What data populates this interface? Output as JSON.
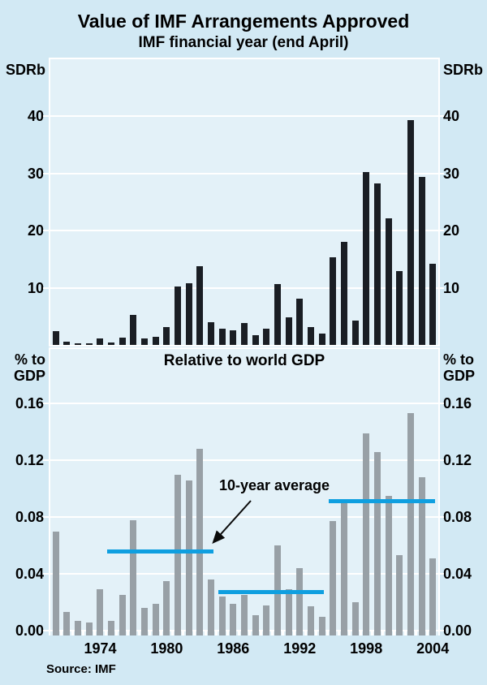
{
  "page": {
    "title": "Value of IMF Arrangements Approved",
    "subtitle": "IMF financial year (end April)",
    "top_axis_label_left": "SDRb",
    "top_axis_label_right": "SDRb",
    "bottom_axis_label_left": "% to\nGDP",
    "bottom_axis_label_right": "% to\nGDP",
    "bottom_title": "Relative to world GDP",
    "annotation_label": "10-year average",
    "source": "Source: IMF"
  },
  "colors": {
    "page_bg": "#d2e9f4",
    "panel_bg": "#e3f1f8",
    "grid": "#ffffff",
    "bar_dark": "#1a1e24",
    "bar_gray": "#98a0a6",
    "avg_line": "#0f9fe0",
    "text": "#000000"
  },
  "chart_data": [
    {
      "type": "bar",
      "title": "Value of IMF Arrangements Approved",
      "subtitle": "IMF financial year (end April)",
      "ylabel": "SDRb",
      "ylim": [
        0,
        50
      ],
      "yticks": [
        10,
        20,
        30,
        40
      ],
      "grid": true,
      "categories": [
        1970,
        1971,
        1972,
        1973,
        1974,
        1975,
        1976,
        1977,
        1978,
        1979,
        1980,
        1981,
        1982,
        1983,
        1984,
        1985,
        1986,
        1987,
        1988,
        1989,
        1990,
        1991,
        1992,
        1993,
        1994,
        1995,
        1996,
        1997,
        1998,
        1999,
        2000,
        2001,
        2002,
        2003,
        2004
      ],
      "values": [
        2.4,
        0.6,
        0.3,
        0.3,
        1.1,
        0.4,
        1.3,
        5.3,
        1.1,
        1.4,
        3.1,
        10.2,
        10.8,
        13.8,
        4.0,
        2.9,
        2.6,
        3.8,
        1.7,
        2.9,
        10.7,
        4.9,
        8.1,
        3.1,
        2.0,
        15.3,
        18.0,
        4.3,
        30.2,
        28.3,
        22.2,
        13.0,
        39.3,
        29.4,
        14.2
      ]
    },
    {
      "type": "bar",
      "title": "Relative to world GDP",
      "ylabel": "% to GDP",
      "ylim": [
        0,
        0.2
      ],
      "yticks": [
        0.0,
        0.04,
        0.08,
        0.12,
        0.16
      ],
      "grid": true,
      "xticks": [
        1974,
        1980,
        1986,
        1992,
        1998,
        2004
      ],
      "categories": [
        1970,
        1971,
        1972,
        1973,
        1974,
        1975,
        1976,
        1977,
        1978,
        1979,
        1980,
        1981,
        1982,
        1983,
        1984,
        1985,
        1986,
        1987,
        1988,
        1989,
        1990,
        1991,
        1992,
        1993,
        1994,
        1995,
        1996,
        1997,
        1998,
        1999,
        2000,
        2001,
        2002,
        2003,
        2004
      ],
      "values": [
        0.07,
        0.013,
        0.007,
        0.006,
        0.029,
        0.007,
        0.025,
        0.078,
        0.016,
        0.019,
        0.035,
        0.11,
        0.106,
        0.128,
        0.036,
        0.024,
        0.019,
        0.025,
        0.011,
        0.018,
        0.06,
        0.029,
        0.044,
        0.017,
        0.01,
        0.077,
        0.09,
        0.02,
        0.139,
        0.126,
        0.095,
        0.053,
        0.153,
        0.108,
        0.051
      ],
      "average_lines": [
        {
          "label": "10-year average",
          "start_year": 1975,
          "end_year": 1984,
          "value": 0.056
        },
        {
          "label": "10-year average",
          "start_year": 1985,
          "end_year": 1994,
          "value": 0.027
        },
        {
          "label": "10-year average",
          "start_year": 1995,
          "end_year": 2004,
          "value": 0.091
        }
      ],
      "annotation": "10-year average"
    }
  ]
}
